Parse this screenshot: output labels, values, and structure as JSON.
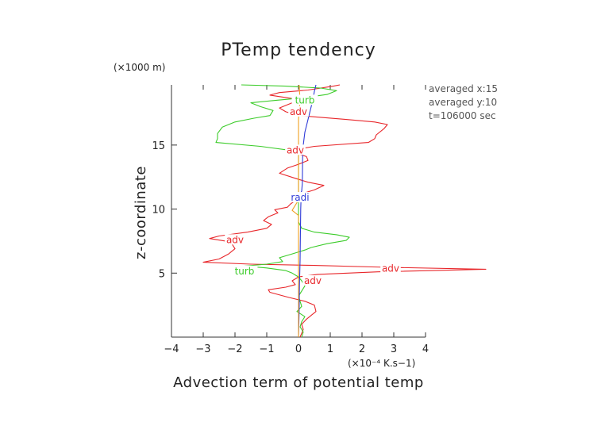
{
  "chart_data": {
    "type": "line",
    "title": "PTemp tendency",
    "xlabel": "Advection term of potential temp",
    "ylabel": "z-coordinate",
    "x_unit": "(×10⁻⁴ K.s−1)",
    "y_unit": "(×1000 m)",
    "xlim": [
      -4,
      4
    ],
    "ylim": [
      0,
      19.7
    ],
    "x_ticks": [
      -4,
      -3,
      -2,
      -1,
      0,
      1,
      2,
      3,
      4
    ],
    "y_ticks": [
      5,
      10,
      15
    ],
    "grid": false,
    "info_lines": [
      "averaged  x:15",
      "averaged  y:10",
      "t=106000 sec"
    ],
    "series": [
      {
        "name": "adv",
        "color": "#e8262a",
        "points": [
          [
            0.05,
            0.0
          ],
          [
            0.1,
            0.3
          ],
          [
            0.15,
            0.6
          ],
          [
            0.1,
            1.0
          ],
          [
            0.25,
            1.4
          ],
          [
            0.55,
            2.0
          ],
          [
            0.5,
            2.5
          ],
          [
            0.2,
            2.8
          ],
          [
            -0.3,
            3.1
          ],
          [
            -0.9,
            3.5
          ],
          [
            -0.95,
            3.7
          ],
          [
            -0.4,
            3.9
          ],
          [
            -0.1,
            4.1
          ],
          [
            -0.2,
            4.4
          ],
          [
            0.0,
            4.7
          ],
          [
            0.6,
            4.9
          ],
          [
            2.5,
            5.1
          ],
          [
            5.9,
            5.3
          ],
          [
            2.8,
            5.45
          ],
          [
            0.5,
            5.6
          ],
          [
            -1.5,
            5.7
          ],
          [
            -3.0,
            5.85
          ],
          [
            -2.5,
            6.1
          ],
          [
            -2.2,
            6.5
          ],
          [
            -2.0,
            6.9
          ],
          [
            -2.1,
            7.3
          ],
          [
            -2.3,
            7.5
          ],
          [
            -2.8,
            7.7
          ],
          [
            -2.5,
            7.9
          ],
          [
            -1.6,
            8.2
          ],
          [
            -1.0,
            8.5
          ],
          [
            -0.85,
            8.8
          ],
          [
            -1.1,
            9.1
          ],
          [
            -0.95,
            9.4
          ],
          [
            -0.65,
            9.7
          ],
          [
            -0.75,
            9.95
          ],
          [
            -0.35,
            10.15
          ],
          [
            -0.25,
            10.4
          ],
          [
            -0.05,
            10.75
          ],
          [
            0.1,
            11.2
          ],
          [
            0.5,
            11.5
          ],
          [
            0.8,
            11.85
          ],
          [
            0.3,
            12.1
          ],
          [
            -0.1,
            12.4
          ],
          [
            -0.6,
            12.8
          ],
          [
            -0.35,
            13.2
          ],
          [
            0.0,
            13.5
          ],
          [
            0.3,
            13.8
          ],
          [
            0.25,
            14.1
          ],
          [
            -0.1,
            14.4
          ],
          [
            -0.2,
            14.6
          ],
          [
            0.5,
            14.9
          ],
          [
            2.2,
            15.2
          ],
          [
            2.4,
            15.5
          ],
          [
            2.45,
            15.8
          ],
          [
            2.7,
            16.3
          ],
          [
            2.8,
            16.6
          ],
          [
            2.4,
            16.8
          ],
          [
            1.5,
            17.0
          ],
          [
            0.0,
            17.3
          ],
          [
            -0.4,
            17.6
          ],
          [
            -0.6,
            17.9
          ],
          [
            -0.2,
            18.3
          ],
          [
            -0.1,
            18.6
          ],
          [
            -0.9,
            18.9
          ],
          [
            -0.6,
            19.1
          ],
          [
            0.3,
            19.3
          ],
          [
            1.1,
            19.6
          ],
          [
            1.3,
            19.7
          ]
        ]
      },
      {
        "name": "turb",
        "color": "#3ccc2a",
        "points": [
          [
            0.1,
            0.0
          ],
          [
            0.15,
            0.4
          ],
          [
            0.05,
            0.8
          ],
          [
            0.1,
            1.2
          ],
          [
            0.2,
            1.6
          ],
          [
            -0.05,
            2.0
          ],
          [
            0.1,
            2.4
          ],
          [
            0.05,
            2.8
          ],
          [
            0.0,
            3.2
          ],
          [
            0.1,
            3.6
          ],
          [
            0.2,
            4.0
          ],
          [
            0.1,
            4.4
          ],
          [
            0.0,
            4.7
          ],
          [
            -0.2,
            5.0
          ],
          [
            -0.4,
            5.2
          ],
          [
            -1.0,
            5.4
          ],
          [
            -1.7,
            5.55
          ],
          [
            -1.0,
            5.7
          ],
          [
            -0.5,
            5.9
          ],
          [
            -0.6,
            6.2
          ],
          [
            -0.2,
            6.5
          ],
          [
            0.2,
            6.8
          ],
          [
            0.4,
            7.0
          ],
          [
            0.9,
            7.3
          ],
          [
            1.5,
            7.55
          ],
          [
            1.6,
            7.8
          ],
          [
            1.2,
            8.0
          ],
          [
            0.5,
            8.2
          ],
          [
            0.1,
            8.5
          ],
          [
            0.0,
            9.0
          ],
          [
            0.0,
            10.0
          ],
          [
            0.0,
            11.0
          ],
          [
            0.0,
            12.0
          ],
          [
            0.0,
            13.0
          ],
          [
            0.0,
            14.0
          ],
          [
            0.0,
            14.5
          ],
          [
            -1.2,
            14.9
          ],
          [
            -2.6,
            15.2
          ],
          [
            -2.55,
            15.5
          ],
          [
            -2.55,
            15.9
          ],
          [
            -2.4,
            16.4
          ],
          [
            -2.0,
            16.8
          ],
          [
            -1.4,
            17.1
          ],
          [
            -0.9,
            17.3
          ],
          [
            -0.8,
            17.7
          ],
          [
            -1.2,
            18.0
          ],
          [
            -1.5,
            18.3
          ],
          [
            -0.7,
            18.5
          ],
          [
            0.2,
            18.7
          ],
          [
            0.9,
            18.95
          ],
          [
            1.2,
            19.25
          ],
          [
            0.7,
            19.45
          ],
          [
            -0.4,
            19.6
          ],
          [
            -1.8,
            19.7
          ]
        ]
      },
      {
        "name": "radi",
        "color": "#2f3bd8",
        "points": [
          [
            0.0,
            0.0
          ],
          [
            0.02,
            2.0
          ],
          [
            0.03,
            4.0
          ],
          [
            0.05,
            6.0
          ],
          [
            0.06,
            8.0
          ],
          [
            0.07,
            10.0
          ],
          [
            0.08,
            10.8
          ],
          [
            0.03,
            11.1
          ],
          [
            0.1,
            11.4
          ],
          [
            0.12,
            12.0
          ],
          [
            0.13,
            14.0
          ],
          [
            0.15,
            15.0
          ],
          [
            0.2,
            16.0
          ],
          [
            0.3,
            17.0
          ],
          [
            0.4,
            18.0
          ],
          [
            0.45,
            18.5
          ],
          [
            0.5,
            19.2
          ],
          [
            0.55,
            19.7
          ]
        ]
      },
      {
        "name": "",
        "color": "#f0a020",
        "points": [
          [
            0.0,
            0.0
          ],
          [
            0.0,
            4.0
          ],
          [
            0.0,
            8.0
          ],
          [
            0.0,
            9.5
          ],
          [
            -0.2,
            9.9
          ],
          [
            -0.1,
            10.3
          ],
          [
            0.0,
            10.7
          ],
          [
            0.0,
            12.0
          ],
          [
            0.0,
            14.3
          ],
          [
            -0.2,
            14.6
          ],
          [
            0.0,
            14.9
          ],
          [
            0.0,
            17.0
          ],
          [
            0.05,
            18.5
          ],
          [
            0.02,
            19.7
          ]
        ]
      }
    ],
    "series_labels": [
      {
        "text": "adv",
        "series": "adv",
        "x": 0.0,
        "y": 17.6
      },
      {
        "text": "adv",
        "series": "adv",
        "x": -0.1,
        "y": 14.6
      },
      {
        "text": "adv",
        "series": "adv",
        "x": -2.0,
        "y": 7.6
      },
      {
        "text": "adv",
        "series": "adv",
        "x": 2.9,
        "y": 5.35
      },
      {
        "text": "adv",
        "series": "adv",
        "x": 0.45,
        "y": 4.4
      },
      {
        "text": "turb",
        "series": "turb",
        "x": 0.2,
        "y": 18.5
      },
      {
        "text": "turb",
        "series": "turb",
        "x": -1.7,
        "y": 5.15
      },
      {
        "text": "radi",
        "series": "radi",
        "x": 0.05,
        "y": 10.9
      }
    ]
  }
}
